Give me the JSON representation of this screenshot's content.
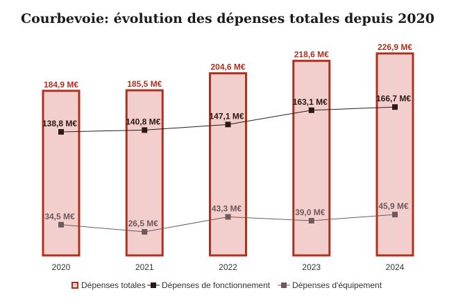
{
  "chart_data": {
    "type": "bar",
    "title": "Courbevoie: évolution des dépenses totales depuis 2020",
    "categories": [
      "2020",
      "2021",
      "2022",
      "2023",
      "2024"
    ],
    "unit": "M€",
    "ylim": [
      0,
      230
    ],
    "grid": false,
    "legend_position": "bottom",
    "series": [
      {
        "name": "Dépenses totales",
        "kind": "bar",
        "values": [
          184.9,
          185.5,
          204.6,
          218.6,
          226.9
        ],
        "labels": [
          "184,9 M€",
          "185,5 M€",
          "204,6 M€",
          "218,6 M€",
          "226,9 M€"
        ],
        "color": "#b03020",
        "fill": "#f2cfcc"
      },
      {
        "name": "Dépenses de fonctionnement",
        "kind": "line",
        "values": [
          138.8,
          140.8,
          147.1,
          163.1,
          166.7
        ],
        "labels": [
          "138,8 M€",
          "140,8 M€",
          "147,1 M€",
          "163,1 M€",
          "166,7 M€"
        ],
        "color": "#2a1a16"
      },
      {
        "name": "Dépenses d'équipement",
        "kind": "line",
        "values": [
          34.5,
          26.5,
          43.3,
          39.0,
          45.9
        ],
        "labels": [
          "34,5 M€",
          "26,5 M€",
          "43,3 M€",
          "39,0 M€",
          "45,9 M€"
        ],
        "color": "#6e5a5e"
      }
    ]
  }
}
